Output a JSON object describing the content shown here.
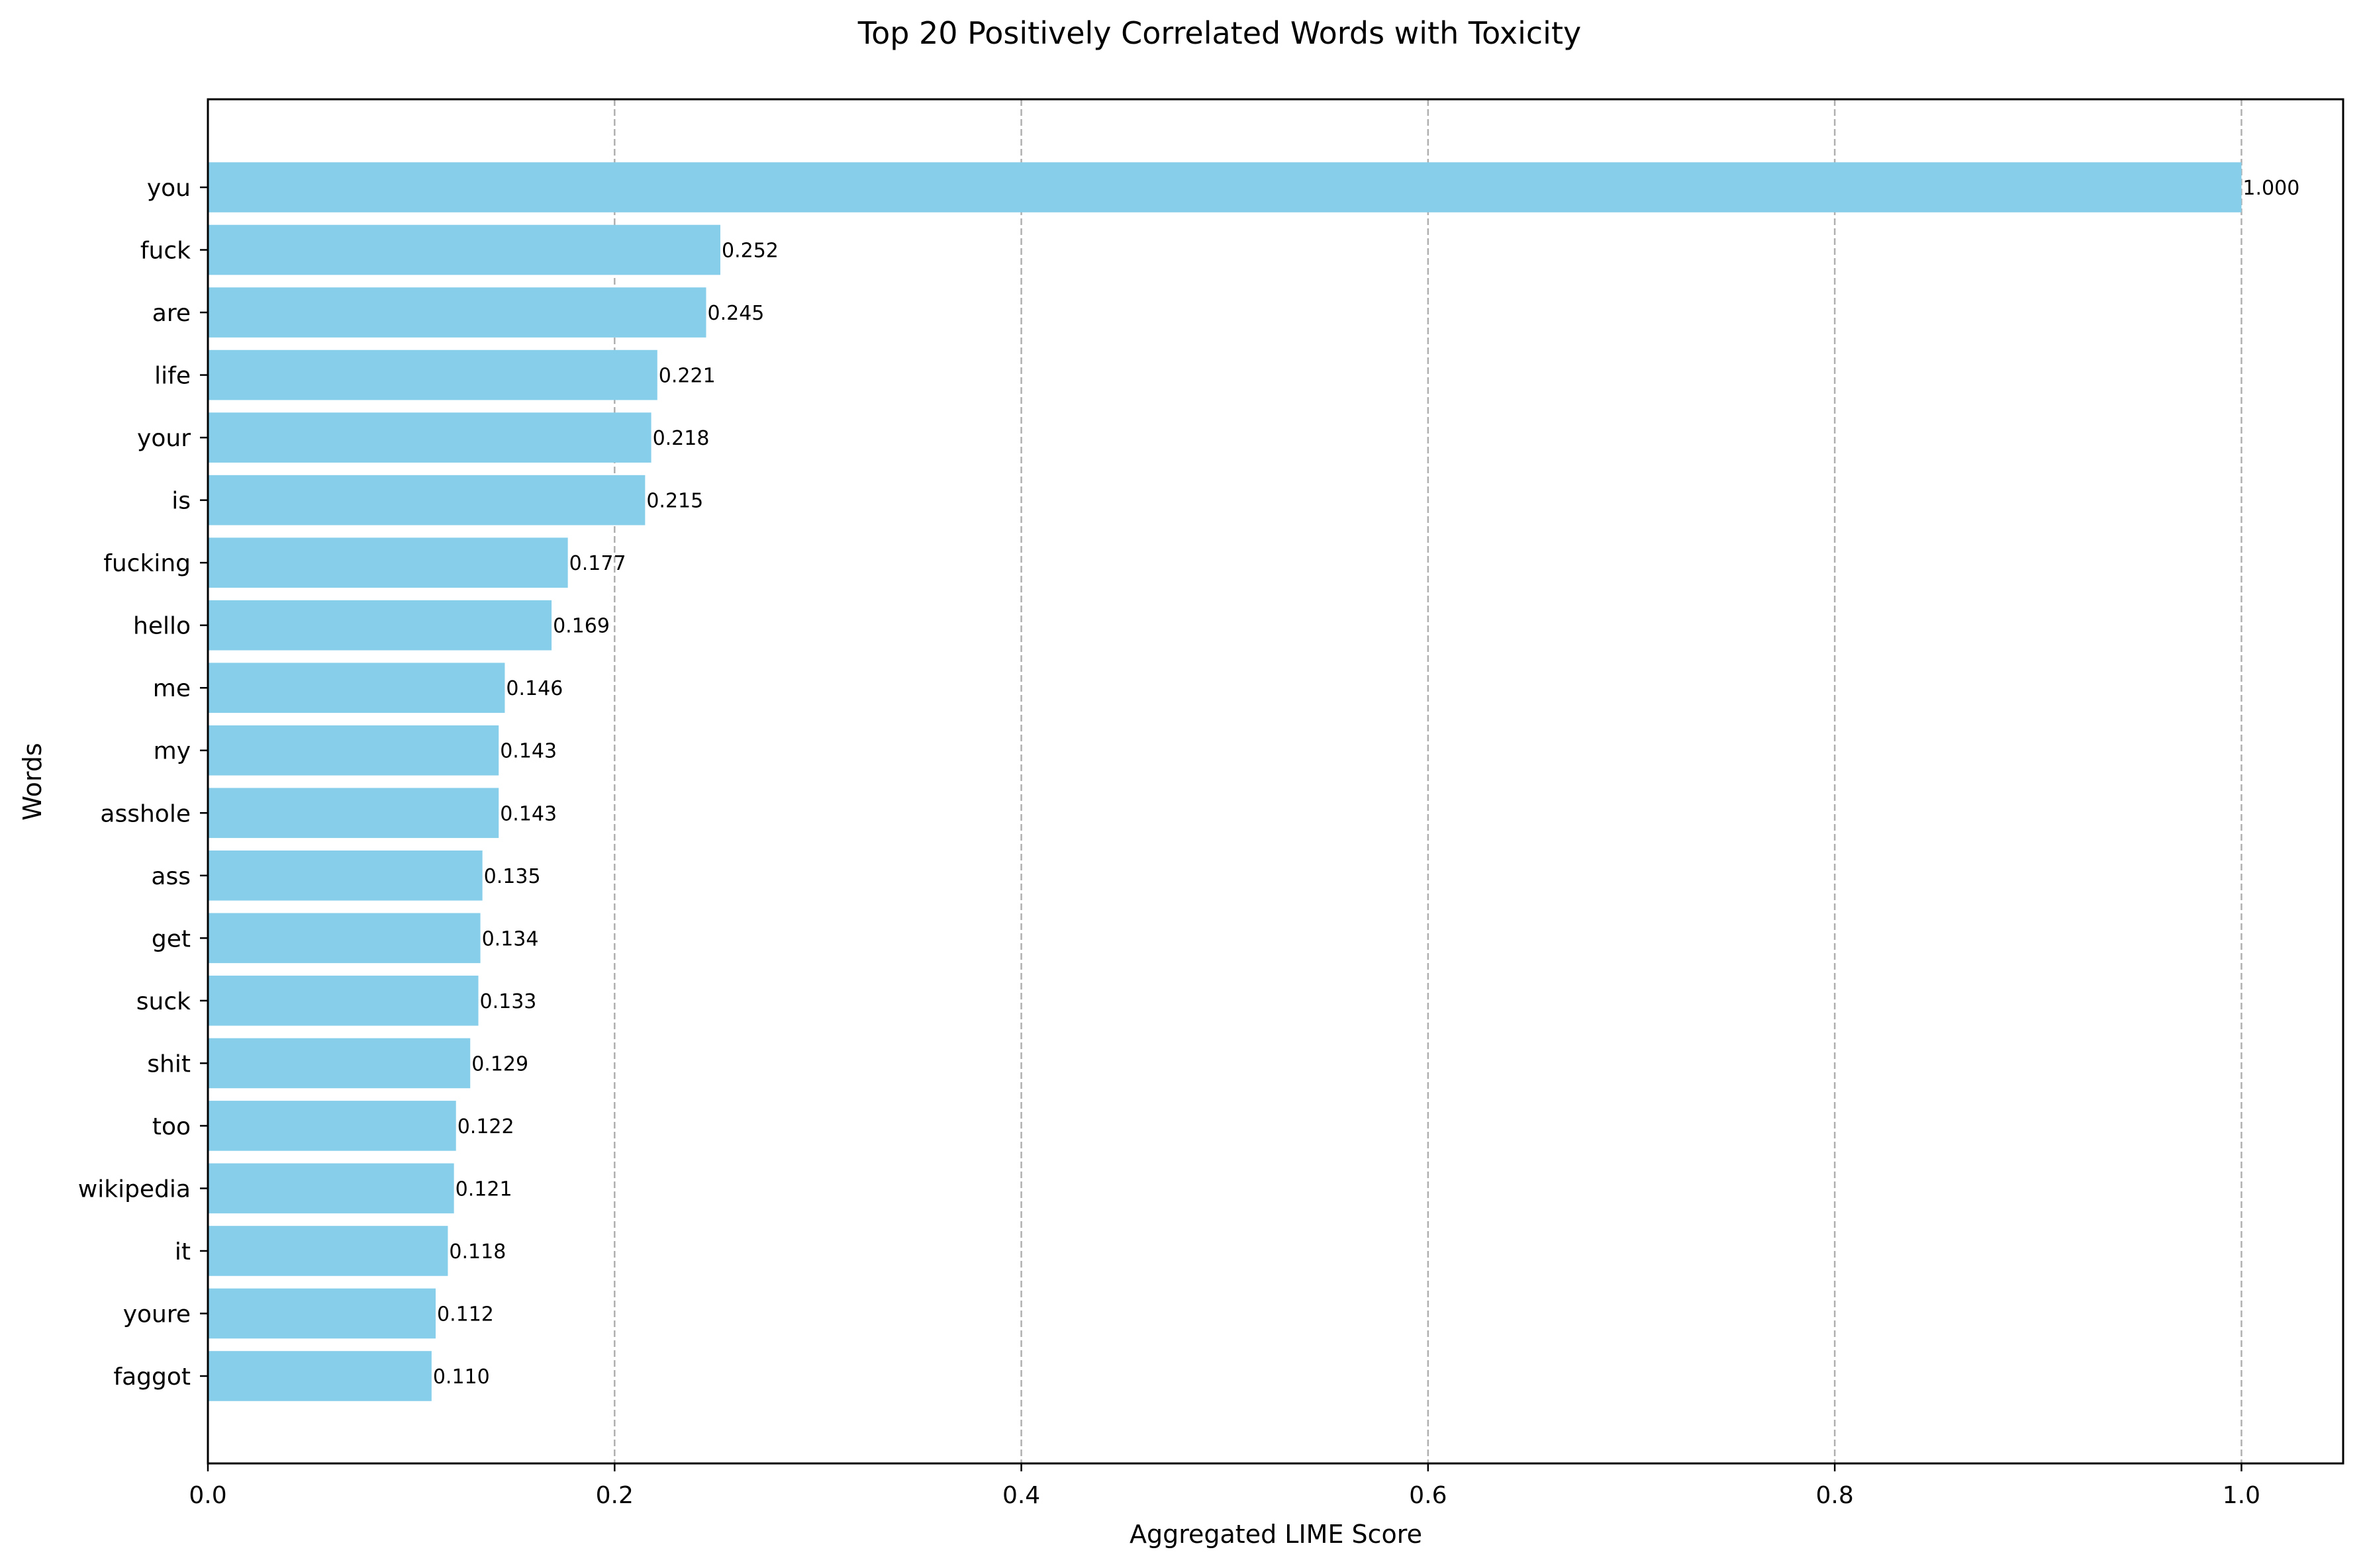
{
  "chart_data": {
    "type": "bar",
    "orientation": "horizontal",
    "title": "Top 20 Positively Correlated Words with Toxicity",
    "xlabel": "Aggregated LIME Score",
    "ylabel": "Words",
    "categories": [
      "you",
      "fuck",
      "are",
      "life",
      "your",
      "is",
      "fucking",
      "hello",
      "me",
      "my",
      "asshole",
      "ass",
      "get",
      "suck",
      "shit",
      "too",
      "wikipedia",
      "it",
      "youre",
      "faggot"
    ],
    "values": [
      1.0,
      0.252,
      0.245,
      0.221,
      0.218,
      0.215,
      0.177,
      0.169,
      0.146,
      0.143,
      0.143,
      0.135,
      0.134,
      0.133,
      0.129,
      0.122,
      0.121,
      0.118,
      0.112,
      0.11
    ],
    "value_labels": [
      "1.000",
      "0.252",
      "0.245",
      "0.221",
      "0.218",
      "0.215",
      "0.177",
      "0.169",
      "0.146",
      "0.143",
      "0.143",
      "0.135",
      "0.134",
      "0.133",
      "0.129",
      "0.122",
      "0.121",
      "0.118",
      "0.112",
      "0.110"
    ],
    "xlim": [
      0.0,
      1.05
    ],
    "xticks": [
      0.0,
      0.2,
      0.4,
      0.6,
      0.8,
      1.0
    ],
    "xtick_labels": [
      "0.0",
      "0.2",
      "0.4",
      "0.6",
      "0.8",
      "1.0"
    ],
    "grid": "x-dashed",
    "bar_color": "#87ceeb",
    "grid_color": "#b0b0b0"
  }
}
